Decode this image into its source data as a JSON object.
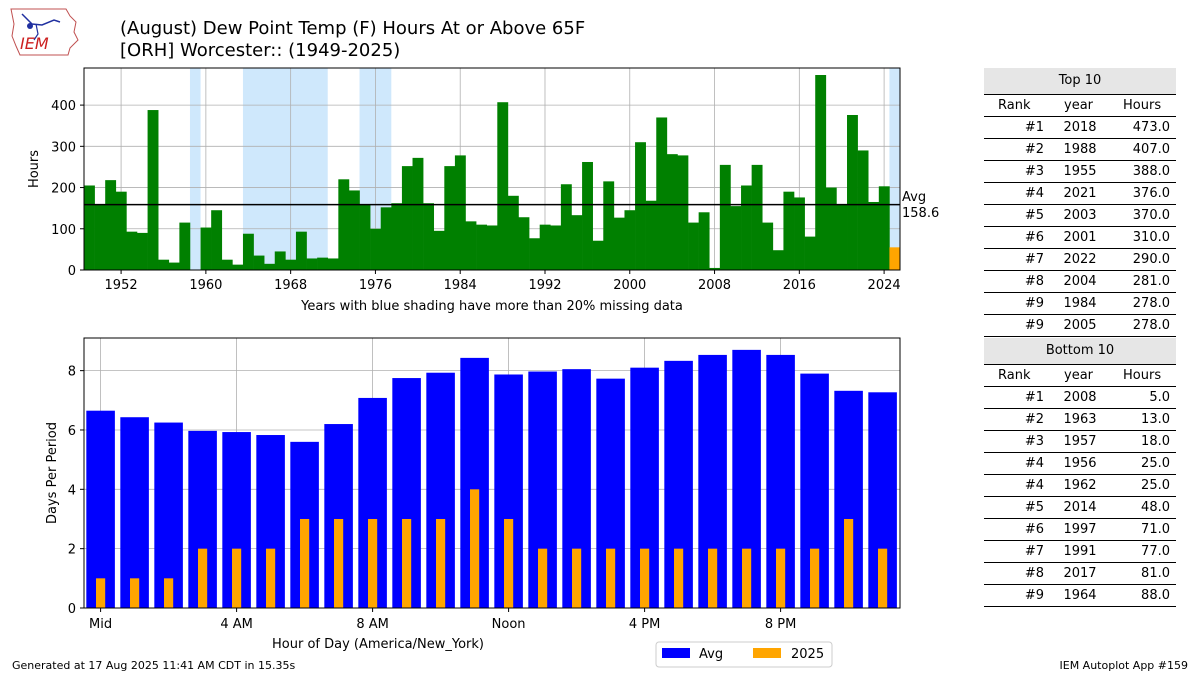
{
  "logo_text": "IEM",
  "title_line1": "(August) Dew Point Temp (F) Hours At or Above 65F",
  "title_line2": "[ORH] Worcester:: (1949-2025)",
  "top_chart": {
    "ylabel": "Hours",
    "xlabel": "Years with blue shading have more than 20% missing data",
    "avg_label": "Avg",
    "avg_value": "158.6"
  },
  "bottom_chart": {
    "ylabel": "Days Per Period",
    "xlabel": "Hour of Day (America/New_York)"
  },
  "legend": {
    "avg": "Avg",
    "y2025": "2025"
  },
  "colors": {
    "hours_bar": "#008000",
    "current_year": "#ffa500",
    "avg_bar": "#0000ff",
    "shading": "#cfe8fc"
  },
  "chart_data": [
    {
      "type": "bar",
      "title": "(August) Dew Point Temp (F) Hours At or Above 65F",
      "xlabel": "Years with blue shading have more than 20% missing data",
      "ylabel": "Hours",
      "xlim": [
        1948.5,
        2025.5
      ],
      "ylim": [
        0,
        490
      ],
      "xticks": [
        1952,
        1960,
        1968,
        1976,
        1984,
        1992,
        2000,
        2008,
        2016,
        2024
      ],
      "xtick_labels": [
        "1952",
        "1960",
        "1968",
        "1976",
        "1984",
        "1992",
        "2000",
        "2008",
        "2016",
        "2024"
      ],
      "yticks": [
        0,
        100,
        200,
        300,
        400
      ],
      "ytick_labels": [
        "0",
        "100",
        "200",
        "300",
        "400"
      ],
      "grid": true,
      "x": [
        1949,
        1950,
        1951,
        1952,
        1953,
        1954,
        1955,
        1956,
        1957,
        1958,
        1959,
        1960,
        1961,
        1962,
        1963,
        1964,
        1965,
        1966,
        1967,
        1968,
        1969,
        1970,
        1971,
        1972,
        1973,
        1974,
        1975,
        1976,
        1977,
        1978,
        1979,
        1980,
        1981,
        1982,
        1983,
        1984,
        1985,
        1986,
        1987,
        1988,
        1989,
        1990,
        1991,
        1992,
        1993,
        1994,
        1995,
        1996,
        1997,
        1998,
        1999,
        2000,
        2001,
        2002,
        2003,
        2004,
        2005,
        2006,
        2007,
        2008,
        2009,
        2010,
        2011,
        2012,
        2013,
        2014,
        2015,
        2016,
        2017,
        2018,
        2019,
        2020,
        2021,
        2022,
        2023,
        2024,
        2025
      ],
      "values": [
        205,
        160,
        218,
        190,
        93,
        90,
        388,
        25,
        18,
        115,
        0,
        103,
        145,
        25,
        13,
        88,
        35,
        15,
        45,
        25,
        93,
        28,
        30,
        28,
        220,
        193,
        160,
        100,
        152,
        162,
        252,
        272,
        162,
        95,
        252,
        278,
        118,
        110,
        108,
        407,
        180,
        128,
        77,
        110,
        108,
        208,
        133,
        262,
        71,
        215,
        127,
        145,
        310,
        168,
        370,
        281,
        278,
        115,
        140,
        5,
        255,
        155,
        205,
        255,
        115,
        48,
        190,
        176,
        81,
        473,
        200,
        160,
        376,
        290,
        165,
        203,
        55
      ],
      "current_year": 2025,
      "missing_data_shading": [
        [
          1958.5,
          1959.5
        ],
        [
          1963.5,
          1971.5
        ],
        [
          1974.5,
          1977.5
        ],
        [
          2024.5,
          2025.5
        ]
      ],
      "average": 158.6
    },
    {
      "type": "bar",
      "xlabel": "Hour of Day (America/New_York)",
      "ylabel": "Days Per Period",
      "ylim": [
        0,
        9.1
      ],
      "yticks": [
        0,
        2,
        4,
        6,
        8
      ],
      "ytick_labels": [
        "0",
        "2",
        "4",
        "6",
        "8"
      ],
      "xtick_positions": [
        0,
        4,
        8,
        12,
        16,
        20
      ],
      "xtick_labels": [
        "Mid",
        "4 AM",
        "8 AM",
        "Noon",
        "4 PM",
        "8 PM"
      ],
      "grid": true,
      "legend_position": "bottom-right",
      "categories": [
        0,
        1,
        2,
        3,
        4,
        5,
        6,
        7,
        8,
        9,
        10,
        11,
        12,
        13,
        14,
        15,
        16,
        17,
        18,
        19,
        20,
        21,
        22,
        23
      ],
      "series": [
        {
          "name": "Avg",
          "values": [
            6.65,
            6.43,
            6.25,
            5.97,
            5.93,
            5.83,
            5.6,
            6.2,
            7.08,
            7.75,
            7.93,
            8.43,
            7.87,
            7.97,
            8.05,
            7.73,
            8.1,
            8.33,
            8.53,
            8.7,
            8.53,
            7.9,
            7.32,
            7.27
          ]
        },
        {
          "name": "2025",
          "values": [
            1,
            1,
            1,
            2,
            2,
            2,
            3,
            3,
            3,
            3,
            3,
            4,
            3,
            2,
            2,
            2,
            2,
            2,
            2,
            2,
            2,
            2,
            3,
            2
          ]
        }
      ]
    }
  ],
  "top10": {
    "title": "Top 10",
    "columns": [
      "Rank",
      "year",
      "Hours"
    ],
    "rows": [
      [
        "#1",
        "2018",
        "473.0"
      ],
      [
        "#2",
        "1988",
        "407.0"
      ],
      [
        "#3",
        "1955",
        "388.0"
      ],
      [
        "#4",
        "2021",
        "376.0"
      ],
      [
        "#5",
        "2003",
        "370.0"
      ],
      [
        "#6",
        "2001",
        "310.0"
      ],
      [
        "#7",
        "2022",
        "290.0"
      ],
      [
        "#8",
        "2004",
        "281.0"
      ],
      [
        "#9",
        "1984",
        "278.0"
      ],
      [
        "#9",
        "2005",
        "278.0"
      ]
    ]
  },
  "bottom10": {
    "title": "Bottom 10",
    "columns": [
      "Rank",
      "year",
      "Hours"
    ],
    "rows": [
      [
        "#1",
        "2008",
        "5.0"
      ],
      [
        "#2",
        "1963",
        "13.0"
      ],
      [
        "#3",
        "1957",
        "18.0"
      ],
      [
        "#4",
        "1956",
        "25.0"
      ],
      [
        "#4",
        "1962",
        "25.0"
      ],
      [
        "#5",
        "2014",
        "48.0"
      ],
      [
        "#6",
        "1997",
        "71.0"
      ],
      [
        "#7",
        "1991",
        "77.0"
      ],
      [
        "#8",
        "2017",
        "81.0"
      ],
      [
        "#9",
        "1964",
        "88.0"
      ]
    ]
  },
  "footer_left": "Generated at 17 Aug 2025 11:41 AM CDT in 15.35s",
  "footer_right": "IEM Autoplot App #159"
}
